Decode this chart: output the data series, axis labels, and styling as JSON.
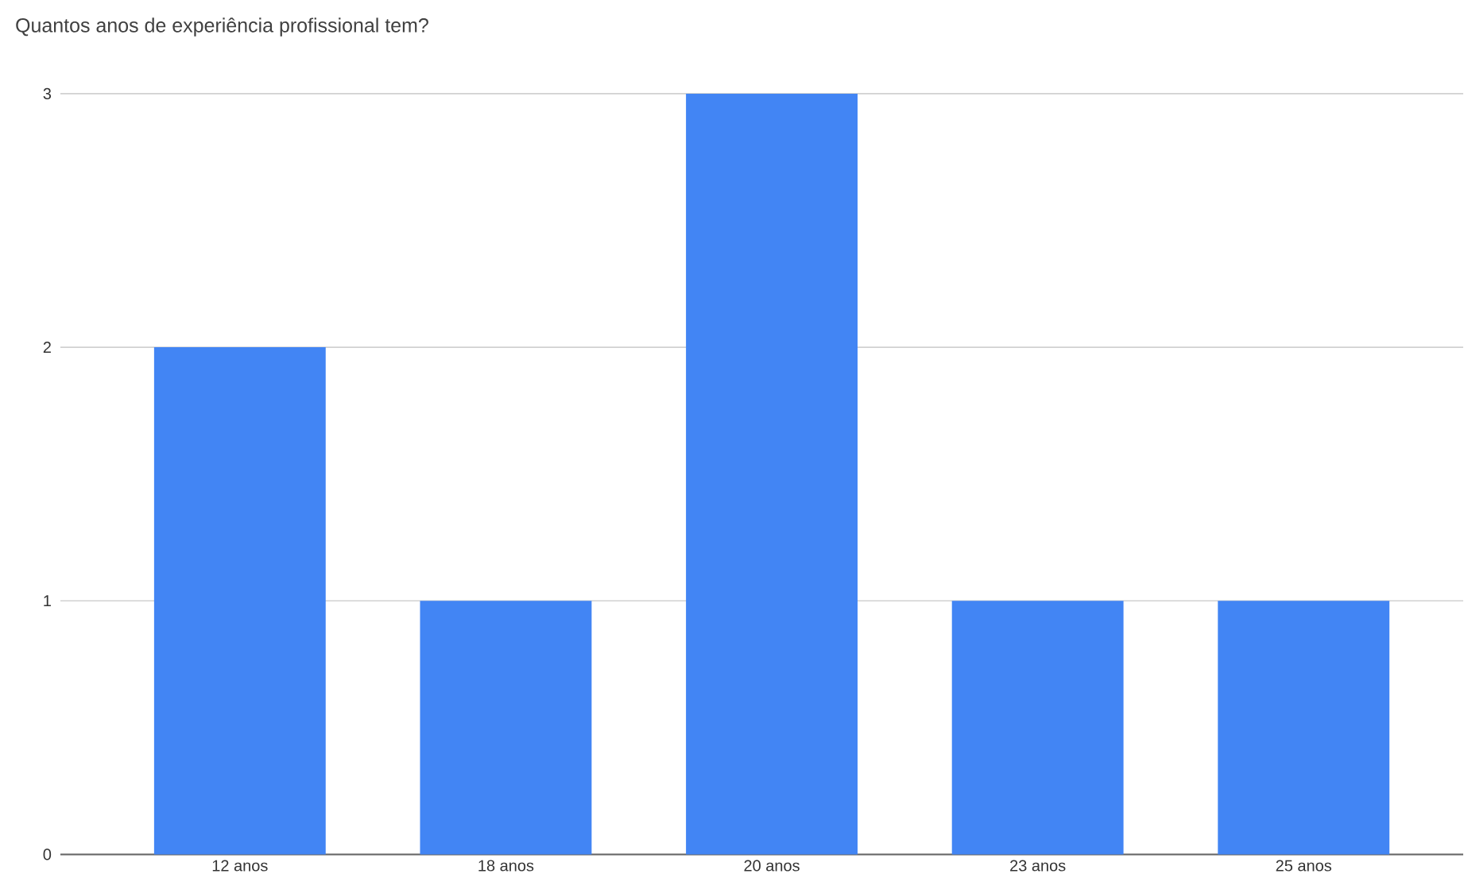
{
  "chart_data": {
    "type": "bar",
    "title": "Quantos anos de experiência profissional tem?",
    "categories": [
      "12 anos",
      "18 anos",
      "20 anos",
      "23 anos",
      "25 anos"
    ],
    "values": [
      2,
      1,
      3,
      1,
      1
    ],
    "color": "#4285f4",
    "ylim": [
      0,
      3
    ],
    "yticks": [
      0,
      1,
      2,
      3
    ],
    "grid": "y"
  }
}
